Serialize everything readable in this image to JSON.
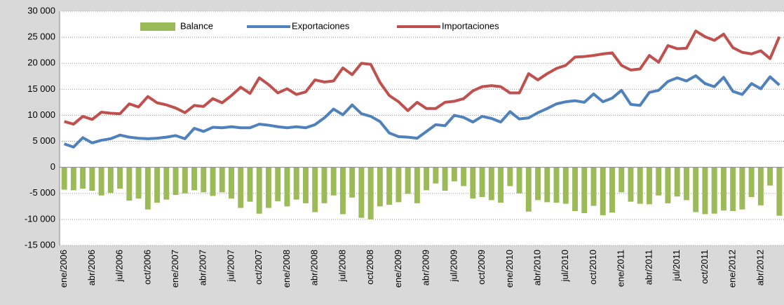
{
  "chart_data": {
    "type": "combo",
    "legend": "top",
    "grid": true,
    "categories": [
      "ene/2006",
      null,
      null,
      "abr/2006",
      null,
      null,
      "jul/2006",
      null,
      null,
      "oct/2006",
      null,
      null,
      "ene/2007",
      null,
      null,
      "abr/2007",
      null,
      null,
      "jul/2007",
      null,
      null,
      "oct/2007",
      null,
      null,
      "ene/2008",
      null,
      null,
      "abr/2008",
      null,
      null,
      "jul/2008",
      null,
      null,
      "oct/2008",
      null,
      null,
      "ene/2009",
      null,
      null,
      "abr/2009",
      null,
      null,
      "jul/2009",
      null,
      null,
      "oct/2009",
      null,
      null,
      "ene/2010",
      null,
      null,
      "abr/2010",
      null,
      null,
      "jul/2010",
      null,
      null,
      "oct/2010",
      null,
      null,
      "ene/2011",
      null,
      null,
      "abr/2011",
      null,
      null,
      "jul/2011",
      null,
      null,
      "oct/2011",
      null,
      null,
      "ene/2012",
      null,
      null,
      "abr/2012",
      null,
      null
    ],
    "ylim": [
      -15000,
      30000
    ],
    "yticks": [
      {
        "value": -15000,
        "label": "-15 000"
      },
      {
        "value": -10000,
        "label": "-10 000"
      },
      {
        "value": -5000,
        "label": "-5 000"
      },
      0,
      {
        "value": 5000,
        "label": "5 000"
      },
      {
        "value": 10000,
        "label": "10 000"
      },
      {
        "value": 15000,
        "label": "15 000"
      },
      {
        "value": 20000,
        "label": "20 000"
      },
      {
        "value": 25000,
        "label": "25 000"
      },
      {
        "value": 30000,
        "label": "30 000"
      }
    ],
    "series": [
      {
        "name": "Balance",
        "type": "bar",
        "color": "#9bbb59",
        "values": [
          -4300,
          -4400,
          -4100,
          -4500,
          -5400,
          -4900,
          -4100,
          -6400,
          -6000,
          -8100,
          -6800,
          -6200,
          -5300,
          -5000,
          -4400,
          -4800,
          -5500,
          -4800,
          -6000,
          -7800,
          -6600,
          -8900,
          -7800,
          -6500,
          -7500,
          -6200,
          -6900,
          -8600,
          -6900,
          -5400,
          -9000,
          -5800,
          -9700,
          -10000,
          -7500,
          -7200,
          -6700,
          -5100,
          -6900,
          -4400,
          -3100,
          -4500,
          -2700,
          -3600,
          -6000,
          -5700,
          -6300,
          -6800,
          -3600,
          -5000,
          -8500,
          -6300,
          -6700,
          -6800,
          -7000,
          -8400,
          -8800,
          -7400,
          -9200,
          -8700,
          -4800,
          -6600,
          -7000,
          -7100,
          -5400,
          -6900,
          -5600,
          -6300,
          -8600,
          -9000,
          -8900,
          -8300,
          -8400,
          -8100,
          -5700,
          -7300,
          -3500,
          -9300
        ]
      },
      {
        "name": "Exportaciones",
        "type": "line",
        "color": "#4f81bd",
        "values": [
          4500,
          3900,
          5700,
          4700,
          5200,
          5500,
          6200,
          5800,
          5600,
          5500,
          5600,
          5800,
          6100,
          5500,
          7500,
          6900,
          7700,
          7600,
          7800,
          7600,
          7600,
          8300,
          8100,
          7800,
          7600,
          7800,
          7600,
          8200,
          9500,
          11200,
          10100,
          12000,
          10300,
          9800,
          8800,
          6600,
          5900,
          5800,
          5600,
          6900,
          8200,
          8000,
          10000,
          9600,
          8700,
          9800,
          9400,
          8700,
          10700,
          9300,
          9500,
          10500,
          11300,
          12200,
          12600,
          12800,
          12500,
          14100,
          12600,
          13300,
          14800,
          12100,
          11900,
          14400,
          14800,
          16500,
          17200,
          16600,
          17600,
          16100,
          15500,
          17300,
          14600,
          14000,
          16100,
          15100,
          17400,
          15800
        ]
      },
      {
        "name": "Importaciones",
        "type": "line",
        "color": "#c0504d",
        "values": [
          8800,
          8300,
          9800,
          9200,
          10600,
          10400,
          10300,
          12200,
          11600,
          13600,
          12400,
          12000,
          11400,
          10500,
          11900,
          11700,
          13200,
          12400,
          13800,
          15400,
          14200,
          17200,
          15900,
          14300,
          15100,
          14000,
          14500,
          16800,
          16400,
          16600,
          19100,
          17800,
          20000,
          19800,
          16300,
          13800,
          12600,
          10900,
          12500,
          11300,
          11300,
          12500,
          12700,
          13200,
          14700,
          15500,
          15700,
          15500,
          14300,
          14300,
          18000,
          16800,
          18000,
          19000,
          19600,
          21200,
          21300,
          21500,
          21800,
          22000,
          19600,
          18700,
          18900,
          21500,
          20200,
          23400,
          22800,
          22900,
          26200,
          25100,
          24400,
          25600,
          23000,
          22100,
          21800,
          22400,
          20900,
          25100
        ]
      }
    ]
  }
}
